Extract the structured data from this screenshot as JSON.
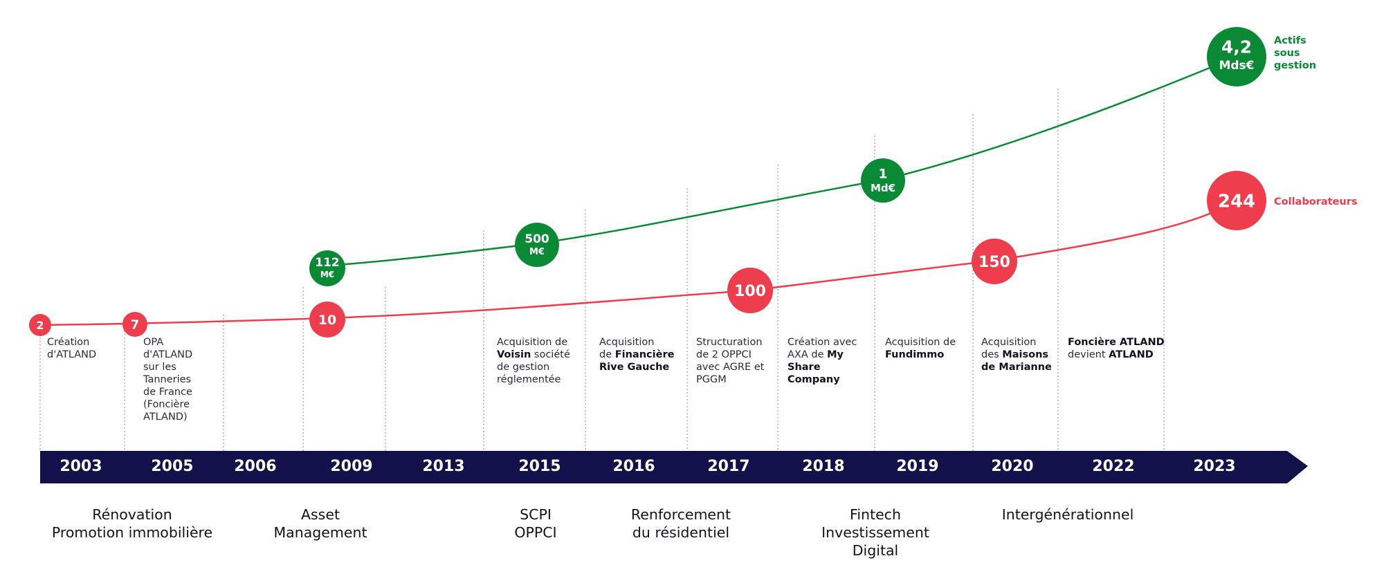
{
  "colors": {
    "navy": "#13114a",
    "green": "#0b8a35",
    "red": "#ee3d4c",
    "divider": "#7f86b5",
    "text": "#2a2a3a"
  },
  "years": [
    "2003",
    "2005",
    "2006",
    "2009",
    "2013",
    "2015",
    "2016",
    "2017",
    "2018",
    "2019",
    "2020",
    "2022",
    "2023"
  ],
  "events": [
    {
      "year": "2003",
      "lines": [
        [
          "Création"
        ],
        [
          "d'ATLAND"
        ]
      ]
    },
    {
      "year": "2005",
      "lines": [
        [
          "OPA"
        ],
        [
          "d'ATLAND"
        ],
        [
          "sur les"
        ],
        [
          "Tanneries"
        ],
        [
          "de France"
        ],
        [
          "(Foncière"
        ],
        [
          "ATLAND)"
        ]
      ]
    },
    {
      "year": "2015",
      "lines": [
        [
          "Acquisition de"
        ],
        [
          "*Voisin",
          " société"
        ],
        [
          "de gestion"
        ],
        [
          "réglementée"
        ]
      ]
    },
    {
      "year": "2016",
      "lines": [
        [
          "Acquisition"
        ],
        [
          "de ",
          "*Financière"
        ],
        [
          "*Rive Gauche"
        ]
      ]
    },
    {
      "year": "2017",
      "lines": [
        [
          "Structuration"
        ],
        [
          "de 2 OPPCI"
        ],
        [
          "avec AGRE et"
        ],
        [
          "PGGM"
        ]
      ]
    },
    {
      "year": "2018",
      "lines": [
        [
          "Création avec"
        ],
        [
          "AXA de ",
          "*My"
        ],
        [
          "*Share"
        ],
        [
          "*Company"
        ]
      ]
    },
    {
      "year": "2019",
      "lines": [
        [
          "Acquisition de"
        ],
        [
          "*Fundimmo"
        ]
      ]
    },
    {
      "year": "2020",
      "lines": [
        [
          "Acquisition"
        ],
        [
          "des ",
          "*Maisons"
        ],
        [
          "*de Marianne"
        ]
      ]
    },
    {
      "year": "2022",
      "lines": [
        [
          "*Foncière ATLAND"
        ],
        [
          "devient ",
          "*ATLAND"
        ]
      ]
    }
  ],
  "phases": [
    {
      "label": [
        "Rénovation",
        "Promotion immobilière"
      ]
    },
    {
      "label": [
        "Asset",
        "Management"
      ]
    },
    {
      "label": [
        "SCPI",
        "OPPCI"
      ]
    },
    {
      "label": [
        "Renforcement",
        "du résidentiel"
      ]
    },
    {
      "label": [
        "Fintech",
        "Investissement",
        "Digital"
      ]
    },
    {
      "label": [
        "Intergénérationnel"
      ]
    }
  ],
  "chart_data": {
    "type": "line",
    "x": [
      "2003",
      "2005",
      "2006",
      "2009",
      "2013",
      "2015",
      "2016",
      "2017",
      "2018",
      "2019",
      "2020",
      "2022",
      "2023"
    ],
    "series": [
      {
        "name": "Actifs sous gestion",
        "color": "#0b8a35",
        "points": [
          {
            "year": "2009",
            "label": [
              "112",
              "M€"
            ]
          },
          {
            "year": "2015",
            "label": [
              "500",
              "M€"
            ]
          },
          {
            "year": "2019",
            "label": [
              "1",
              "Md€"
            ]
          },
          {
            "year": "2023",
            "label": [
              "4,2",
              "Mds€"
            ]
          }
        ]
      },
      {
        "name": "Collaborateurs",
        "color": "#ee3d4c",
        "points": [
          {
            "year": "2003",
            "label": [
              "2"
            ]
          },
          {
            "year": "2005",
            "label": [
              "7"
            ]
          },
          {
            "year": "2009",
            "label": [
              "10"
            ]
          },
          {
            "year": "2017",
            "label": [
              "100"
            ]
          },
          {
            "year": "2020",
            "label": [
              "150"
            ]
          },
          {
            "year": "2023",
            "label": [
              "244"
            ]
          }
        ]
      }
    ],
    "series_labels": {
      "green": [
        "Actifs",
        "sous",
        "gestion"
      ],
      "red": [
        "Collaborateurs"
      ]
    }
  }
}
